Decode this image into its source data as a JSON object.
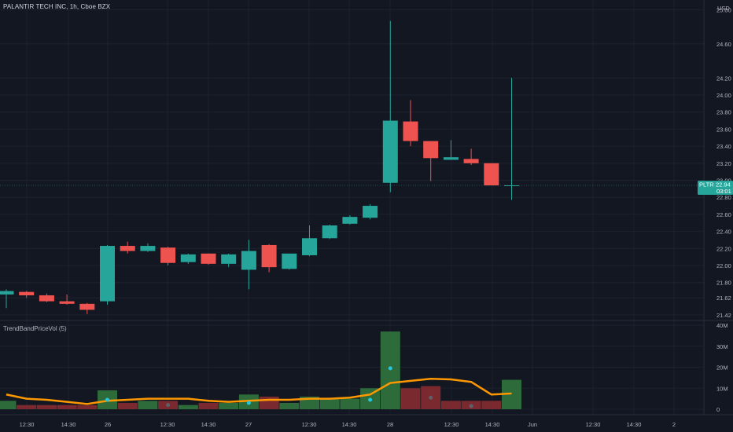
{
  "header": {
    "symbol_title": "PALANTIR TECH INC, 1h, Cboe BZX",
    "currency": "USD"
  },
  "indicator": {
    "name": "TrendBandPriceVol (5)"
  },
  "current_price": {
    "ticker": "PLTR",
    "price": "22.94",
    "countdown": "03:01"
  },
  "colors": {
    "background": "#131722",
    "up": "#26a69a",
    "down": "#ef5350",
    "vol_up": "#2e6b3a",
    "vol_down": "#7a2a2e",
    "trend_line": "#ff9800",
    "grid": "#1e222d",
    "text": "#b2b5be"
  },
  "chart_data": {
    "type": "candlestick",
    "title": "PALANTIR TECH INC, 1h, Cboe BZX",
    "price_axis": {
      "ticks": [
        "25.00",
        "24.60",
        "24.20",
        "24.00",
        "23.80",
        "23.60",
        "23.40",
        "23.20",
        "23.00",
        "22.80",
        "22.60",
        "22.40",
        "22.20",
        "22.00",
        "21.80",
        "21.62",
        "21.42"
      ],
      "ylim": [
        21.38,
        25.0
      ]
    },
    "volume_axis": {
      "ticks": [
        "40M",
        "30M",
        "20M",
        "10M",
        "0"
      ],
      "ylim": [
        0,
        40
      ]
    },
    "time_axis": {
      "ticks": [
        "12:30",
        "14:30",
        "26",
        "12:30",
        "14:30",
        "27",
        "12:30",
        "14:30",
        "28",
        "12:30",
        "14:30",
        "Jun",
        "12:30",
        "14:30",
        "2"
      ]
    },
    "candles": [
      {
        "o": 21.66,
        "h": 21.72,
        "l": 21.5,
        "c": 21.7
      },
      {
        "o": 21.69,
        "h": 21.7,
        "l": 21.62,
        "c": 21.65
      },
      {
        "o": 21.65,
        "h": 21.67,
        "l": 21.57,
        "c": 21.58
      },
      {
        "o": 21.58,
        "h": 21.66,
        "l": 21.54,
        "c": 21.55
      },
      {
        "o": 21.55,
        "h": 21.56,
        "l": 21.43,
        "c": 21.48
      },
      {
        "o": 21.58,
        "h": 22.24,
        "l": 21.54,
        "c": 22.23
      },
      {
        "o": 22.23,
        "h": 22.28,
        "l": 22.14,
        "c": 22.17
      },
      {
        "o": 22.17,
        "h": 22.26,
        "l": 22.16,
        "c": 22.23
      },
      {
        "o": 22.21,
        "h": 22.22,
        "l": 22.0,
        "c": 22.03
      },
      {
        "o": 22.04,
        "h": 22.14,
        "l": 22.02,
        "c": 22.13
      },
      {
        "o": 22.14,
        "h": 22.14,
        "l": 22.01,
        "c": 22.02
      },
      {
        "o": 22.02,
        "h": 22.14,
        "l": 21.98,
        "c": 22.13
      },
      {
        "o": 21.95,
        "h": 22.3,
        "l": 21.72,
        "c": 22.17
      },
      {
        "o": 22.24,
        "h": 22.25,
        "l": 21.92,
        "c": 21.98
      },
      {
        "o": 21.96,
        "h": 22.14,
        "l": 21.95,
        "c": 22.14
      },
      {
        "o": 22.12,
        "h": 22.47,
        "l": 22.11,
        "c": 22.32
      },
      {
        "o": 22.32,
        "h": 22.48,
        "l": 22.31,
        "c": 22.47
      },
      {
        "o": 22.49,
        "h": 22.59,
        "l": 22.48,
        "c": 22.57
      },
      {
        "o": 22.56,
        "h": 22.72,
        "l": 22.54,
        "c": 22.7
      },
      {
        "o": 22.97,
        "h": 24.87,
        "l": 22.86,
        "c": 23.7
      },
      {
        "o": 23.69,
        "h": 23.94,
        "l": 23.4,
        "c": 23.46
      },
      {
        "o": 23.46,
        "h": 23.46,
        "l": 22.99,
        "c": 23.26
      },
      {
        "o": 23.24,
        "h": 23.47,
        "l": 23.24,
        "c": 23.27
      },
      {
        "o": 23.25,
        "h": 23.37,
        "l": 23.18,
        "c": 23.2
      },
      {
        "o": 23.2,
        "h": 23.2,
        "l": 22.94,
        "c": 22.94
      },
      {
        "o": 22.94,
        "h": 24.2,
        "l": 22.77,
        "c": 22.94
      }
    ],
    "volume": [
      {
        "v": 4.0,
        "up": true
      },
      {
        "v": 2.0,
        "up": false
      },
      {
        "v": 2.0,
        "up": false
      },
      {
        "v": 2.0,
        "up": false
      },
      {
        "v": 2.0,
        "up": false
      },
      {
        "v": 9.0,
        "up": true
      },
      {
        "v": 3.0,
        "up": false
      },
      {
        "v": 4.0,
        "up": true
      },
      {
        "v": 4.0,
        "up": false
      },
      {
        "v": 2.0,
        "up": true
      },
      {
        "v": 3.0,
        "up": false
      },
      {
        "v": 3.0,
        "up": true
      },
      {
        "v": 7.0,
        "up": true
      },
      {
        "v": 6.0,
        "up": false
      },
      {
        "v": 3.0,
        "up": true
      },
      {
        "v": 6.0,
        "up": true
      },
      {
        "v": 5.0,
        "up": true
      },
      {
        "v": 5.0,
        "up": true
      },
      {
        "v": 10.0,
        "up": true
      },
      {
        "v": 37.0,
        "up": true
      },
      {
        "v": 10.0,
        "up": false
      },
      {
        "v": 11.0,
        "up": false
      },
      {
        "v": 4.0,
        "up": false
      },
      {
        "v": 4.0,
        "up": false
      },
      {
        "v": 4.0,
        "up": false
      },
      {
        "v": 14.0,
        "up": true
      }
    ],
    "trend_line": [
      7.0,
      5.0,
      4.5,
      3.5,
      2.5,
      4.0,
      4.5,
      5.0,
      5.0,
      5.0,
      4.0,
      3.5,
      4.0,
      4.5,
      4.5,
      5.0,
      5.0,
      5.5,
      7.0,
      12.5,
      13.5,
      14.5,
      14.2,
      13.0,
      7.0,
      7.5
    ],
    "markers": [
      {
        "i": 5,
        "v": 4.5,
        "up": true
      },
      {
        "i": 8,
        "v": 2.0,
        "up": false
      },
      {
        "i": 12,
        "v": 3.0,
        "up": true
      },
      {
        "i": 18,
        "v": 4.5,
        "up": true
      },
      {
        "i": 19,
        "v": 19.5,
        "up": true
      },
      {
        "i": 21,
        "v": 5.5,
        "up": false
      },
      {
        "i": 23,
        "v": 1.5,
        "up": false
      }
    ]
  }
}
